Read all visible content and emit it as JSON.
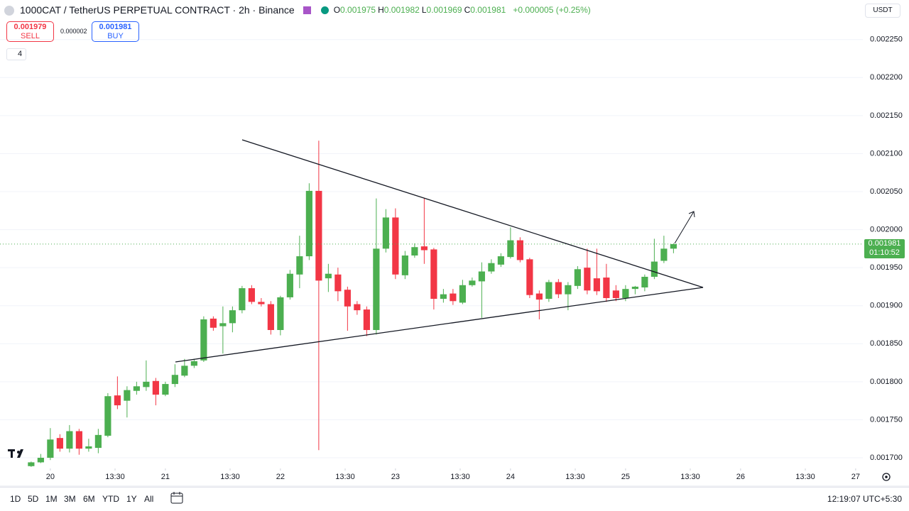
{
  "header": {
    "symbol": "1000CAT / TetherUS PERPETUAL CONTRACT · 2h · Binance",
    "legend": [
      {
        "key": "O",
        "value": "0.001975"
      },
      {
        "key": "H",
        "value": "0.001982"
      },
      {
        "key": "L",
        "value": "0.001969"
      },
      {
        "key": "C",
        "value": "0.001981"
      }
    ],
    "change": "+0.000005 (+0.25%)"
  },
  "trade": {
    "sell_price": "0.001979",
    "sell_label": "SELL",
    "spread": "0.000002",
    "buy_price": "0.001981",
    "buy_label": "BUY"
  },
  "indicators_count": "4",
  "currency": "USDT",
  "price_tag": {
    "price": "0.001981",
    "countdown": "01:10:52"
  },
  "toolbar": {
    "ranges": [
      "1D",
      "5D",
      "1M",
      "3M",
      "6M",
      "YTD",
      "1Y",
      "All"
    ],
    "clock": "12:19:07 UTC+5:30"
  },
  "chart_data": {
    "type": "candlestick",
    "up_color": "#4caf50",
    "down_color": "#f23645",
    "grid": true,
    "x": [
      -4,
      -2,
      0,
      2,
      4,
      6,
      8,
      10,
      12,
      14,
      16,
      18,
      20,
      22,
      24,
      26,
      28,
      30,
      32,
      34,
      36,
      38,
      40,
      42,
      44,
      46,
      48,
      50,
      52,
      54,
      56,
      58,
      60,
      62,
      64,
      66,
      68,
      70,
      72,
      74,
      76,
      78,
      80,
      82,
      84,
      86,
      88,
      90,
      92,
      94,
      96,
      98,
      100,
      102,
      104,
      106,
      108,
      110,
      112,
      114,
      116,
      118,
      120,
      122,
      124,
      126,
      128,
      130
    ],
    "open": [
      0.001689,
      0.001694,
      0.0017,
      0.001726,
      0.001712,
      0.001735,
      0.001712,
      0.001713,
      0.001729,
      0.001782,
      0.001775,
      0.001788,
      0.001793,
      0.001801,
      0.001783,
      0.001797,
      0.001808,
      0.001821,
      0.001828,
      0.001883,
      0.001873,
      0.001877,
      0.001894,
      0.001923,
      0.001905,
      0.001902,
      0.001868,
      0.001911,
      0.001941,
      0.001965,
      0.002051,
      0.001936,
      0.001941,
      0.001921,
      0.001902,
      0.001895,
      0.001868,
      0.001975,
      0.002016,
      0.00194,
      0.001966,
      0.001978,
      0.001974,
      0.001909,
      0.001916,
      0.001904,
      0.001927,
      0.001932,
      0.001945,
      0.001954,
      0.001964,
      0.001986,
      0.001961,
      0.001916,
      0.001909,
      0.001931,
      0.001915,
      0.001926,
      0.00195,
      0.001936,
      0.001937,
      0.00192,
      0.00191,
      0.001922,
      0.001924,
      0.001938,
      0.001959,
      0.001975
    ],
    "high": [
      0.001695,
      0.001705,
      0.001739,
      0.001731,
      0.001743,
      0.001738,
      0.001725,
      0.001738,
      0.001785,
      0.001807,
      0.001794,
      0.0018,
      0.001828,
      0.001805,
      0.0018,
      0.001823,
      0.00183,
      0.00183,
      0.001886,
      0.001886,
      0.001899,
      0.001899,
      0.001926,
      0.001927,
      0.00191,
      0.001906,
      0.001913,
      0.001947,
      0.001992,
      0.002061,
      0.002117,
      0.001955,
      0.00195,
      0.001925,
      0.001906,
      0.001899,
      0.002041,
      0.002027,
      0.002028,
      0.001972,
      0.001982,
      0.002041,
      0.001976,
      0.001922,
      0.001922,
      0.001934,
      0.001937,
      0.001957,
      0.001961,
      0.001969,
      0.002003,
      0.00199,
      0.001963,
      0.00192,
      0.001934,
      0.001935,
      0.001931,
      0.001952,
      0.001975,
      0.001975,
      0.001955,
      0.001927,
      0.001927,
      0.001926,
      0.001941,
      0.001988,
      0.001992,
      0.001982
    ],
    "low": [
      0.001688,
      0.001693,
      0.001697,
      0.001708,
      0.001707,
      0.001704,
      0.001708,
      0.001706,
      0.001727,
      0.001764,
      0.001753,
      0.001783,
      0.001788,
      0.001769,
      0.001781,
      0.001793,
      0.001806,
      0.001818,
      0.001826,
      0.001867,
      0.001837,
      0.001865,
      0.00189,
      0.001902,
      0.001899,
      0.001862,
      0.001861,
      0.001908,
      0.001923,
      0.00196,
      0.00171,
      0.001918,
      0.001906,
      0.001867,
      0.001888,
      0.00186,
      0.001862,
      0.00197,
      0.001935,
      0.001935,
      0.001963,
      0.001955,
      0.001895,
      0.001904,
      0.001901,
      0.001902,
      0.001925,
      0.001884,
      0.001942,
      0.001951,
      0.001962,
      0.001957,
      0.00191,
      0.001882,
      0.001905,
      0.00191,
      0.001894,
      0.001922,
      0.001915,
      0.001914,
      0.001905,
      0.001906,
      0.001906,
      0.001915,
      0.001919,
      0.001935,
      0.001956,
      0.001969
    ],
    "close": [
      0.001694,
      0.0017,
      0.001724,
      0.001712,
      0.001735,
      0.001712,
      0.001715,
      0.00173,
      0.001781,
      0.001769,
      0.001789,
      0.001794,
      0.0018,
      0.001783,
      0.001797,
      0.001809,
      0.001821,
      0.001827,
      0.001882,
      0.001871,
      0.001877,
      0.001894,
      0.001923,
      0.001905,
      0.001902,
      0.001868,
      0.001911,
      0.001942,
      0.001965,
      0.002051,
      0.001933,
      0.001942,
      0.001919,
      0.001899,
      0.001894,
      0.001868,
      0.001975,
      0.002016,
      0.001941,
      0.001966,
      0.001977,
      0.001973,
      0.001909,
      0.001915,
      0.001906,
      0.001927,
      0.001933,
      0.001945,
      0.001956,
      0.001965,
      0.001986,
      0.00196,
      0.001914,
      0.001908,
      0.001931,
      0.001915,
      0.001927,
      0.001948,
      0.00192,
      0.001919,
      0.00191,
      0.00191,
      0.001922,
      0.001925,
      0.001938,
      0.001958,
      0.001975,
      0.001981
    ],
    "xlim": [
      -10.5,
      169.5
    ],
    "xticks": [
      {
        "value": 0,
        "label": "20"
      },
      {
        "value": 13.5,
        "label": "13:30"
      },
      {
        "value": 24,
        "label": "21"
      },
      {
        "value": 37.5,
        "label": "13:30"
      },
      {
        "value": 48,
        "label": "22"
      },
      {
        "value": 61.5,
        "label": "13:30"
      },
      {
        "value": 72,
        "label": "23"
      },
      {
        "value": 85.5,
        "label": "13:30"
      },
      {
        "value": 96,
        "label": "24"
      },
      {
        "value": 109.5,
        "label": "13:30"
      },
      {
        "value": 120,
        "label": "25"
      },
      {
        "value": 133.5,
        "label": "13:30"
      },
      {
        "value": 144,
        "label": "26"
      },
      {
        "value": 157.5,
        "label": "13:30"
      },
      {
        "value": 168,
        "label": "27"
      }
    ],
    "ylim": [
      0.001686,
      0.002302
    ],
    "yticks": [
      {
        "value": 0.0017,
        "label": "0.001700"
      },
      {
        "value": 0.00175,
        "label": "0.001750"
      },
      {
        "value": 0.0018,
        "label": "0.001800"
      },
      {
        "value": 0.00185,
        "label": "0.001850"
      },
      {
        "value": 0.0019,
        "label": "0.001900"
      },
      {
        "value": 0.00195,
        "label": "0.001950"
      },
      {
        "value": 0.002,
        "label": "0.002000"
      },
      {
        "value": 0.00205,
        "label": "0.002050"
      },
      {
        "value": 0.0021,
        "label": "0.002100"
      },
      {
        "value": 0.00215,
        "label": "0.002150"
      },
      {
        "value": 0.0022,
        "label": "0.002200"
      },
      {
        "value": 0.00225,
        "label": "0.002250"
      }
    ]
  }
}
